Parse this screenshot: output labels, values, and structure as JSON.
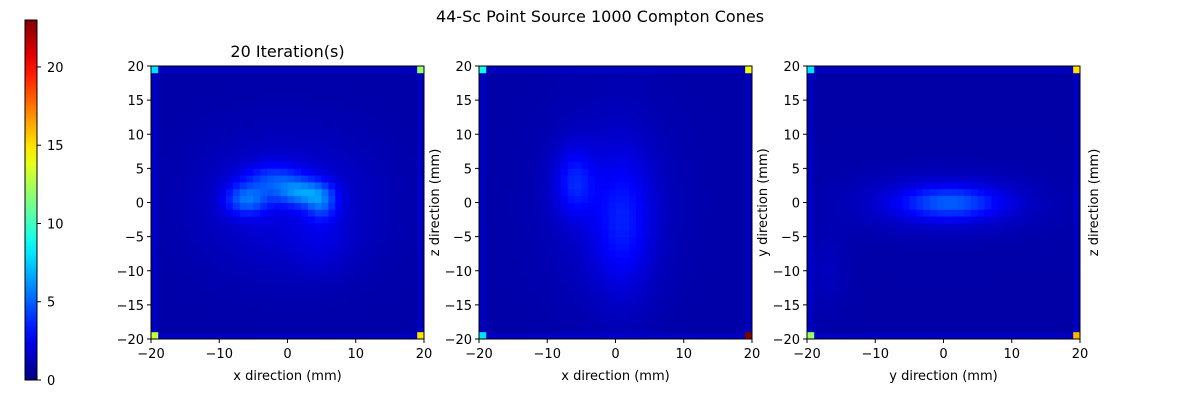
{
  "figure": {
    "suptitle": "44-Sc Point Source 1000 Compton Cones"
  },
  "colorbar": {
    "cmap": "jet",
    "range": [
      0,
      23
    ],
    "ticks": [
      0,
      5,
      10,
      15,
      20
    ]
  },
  "chart_data": [
    {
      "type": "heatmap",
      "title": "20 Iteration(s)",
      "xlabel": "x direction (mm)",
      "ylabel": "",
      "xlim": [
        -20,
        20
      ],
      "ylim": [
        -20,
        20
      ],
      "xticks": [
        -20,
        -10,
        0,
        10,
        20
      ],
      "yticks": [
        -20,
        -15,
        -10,
        -5,
        0,
        5,
        10,
        15,
        20
      ],
      "grid": false,
      "background_level": 0.9,
      "blobs": [
        {
          "x": -6,
          "y": 0.5,
          "sx": 2.2,
          "sy": 1.6,
          "v": 3.6
        },
        {
          "x": 2,
          "y": 1.5,
          "sx": 2.6,
          "sy": 1.4,
          "v": 3.8
        },
        {
          "x": 5,
          "y": 0,
          "sx": 1.6,
          "sy": 1.8,
          "v": 2.8
        },
        {
          "x": -2,
          "y": 3.5,
          "sx": 3.0,
          "sy": 1.6,
          "v": 2.4
        },
        {
          "x": 0,
          "y": 0,
          "sx": 9,
          "sy": 7,
          "v": 1.2
        },
        {
          "x": 5,
          "y": -6,
          "sx": 3,
          "sy": 3,
          "v": 0.6
        }
      ],
      "corner_values": {
        "top_left": 8,
        "top_right": 12,
        "bottom_left": 13,
        "bottom_right": 15
      }
    },
    {
      "type": "heatmap",
      "title": "",
      "xlabel": "x direction (mm)",
      "ylabel": "z direction (mm)",
      "xlim": [
        -20,
        20
      ],
      "ylim": [
        -20,
        20
      ],
      "xticks": [
        -20,
        -10,
        0,
        10,
        20
      ],
      "yticks": [
        -20,
        -15,
        -10,
        -5,
        0,
        5,
        10,
        15,
        20
      ],
      "grid": false,
      "background_level": 0.9,
      "blobs": [
        {
          "x": -6,
          "y": 3,
          "sx": 2.0,
          "sy": 3.5,
          "v": 2.2
        },
        {
          "x": 1,
          "y": -3,
          "sx": 3.0,
          "sy": 7.0,
          "v": 1.9
        },
        {
          "x": -1,
          "y": 0,
          "sx": 7,
          "sy": 10,
          "v": 0.8
        }
      ],
      "corner_values": {
        "top_left": 9,
        "top_right": 14,
        "bottom_left": 8,
        "bottom_right": 23
      }
    },
    {
      "type": "heatmap",
      "title": "",
      "xlabel": "y direction (mm)",
      "ylabel": "y direction (mm)",
      "y2label": "z direction (mm)",
      "xlim": [
        -20,
        20
      ],
      "ylim": [
        -20,
        20
      ],
      "xticks": [
        -20,
        -10,
        0,
        10,
        20
      ],
      "yticks": [
        -20,
        -15,
        -10,
        -5,
        0,
        5,
        10,
        15,
        20
      ],
      "grid": false,
      "background_level": 0.9,
      "blobs": [
        {
          "x": 1,
          "y": 0,
          "sx": 5.0,
          "sy": 1.6,
          "v": 3.0
        },
        {
          "x": 0,
          "y": 0,
          "sx": 9.0,
          "sy": 3.0,
          "v": 1.2
        },
        {
          "x": -17,
          "y": -10,
          "sx": 2,
          "sy": 4,
          "v": 0.5
        }
      ],
      "corner_values": {
        "top_left": 8,
        "top_right": 15,
        "bottom_left": 12,
        "bottom_right": 16
      }
    }
  ]
}
